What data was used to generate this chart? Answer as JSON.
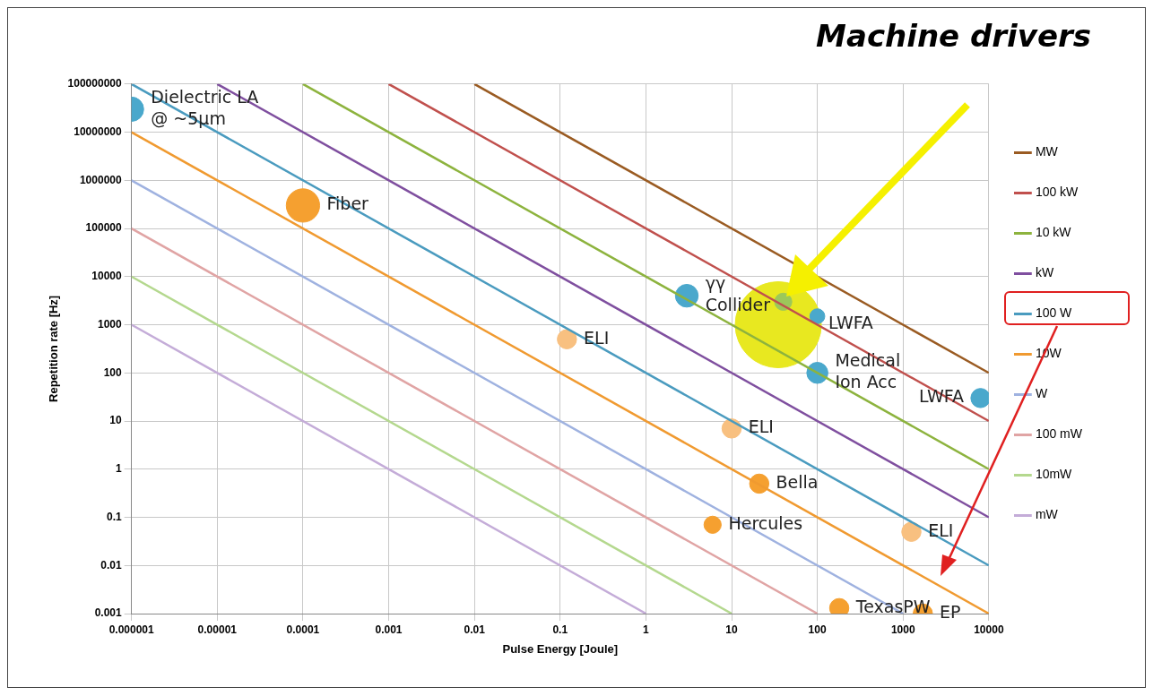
{
  "chart_data": {
    "type": "line",
    "title": "Machine drivers",
    "xlabel": "Pulse Energy [Joule]",
    "ylabel": "Repetition rate [Hz]",
    "log": "xy",
    "grid": true,
    "legend": "right",
    "xlim": [
      1e-06,
      10000
    ],
    "ylim": [
      0.001,
      100000000
    ],
    "xticks": [
      {
        "value": 1e-06,
        "label": "0.000001"
      },
      {
        "value": 1e-05,
        "label": "0.00001"
      },
      {
        "value": 0.0001,
        "label": "0.0001"
      },
      {
        "value": 0.001,
        "label": "0.001"
      },
      {
        "value": 0.01,
        "label": "0.01"
      },
      {
        "value": 0.1,
        "label": "0.1"
      },
      1,
      10,
      100,
      1000,
      10000
    ],
    "yticks": [
      {
        "value": 0.001,
        "label": "0.001"
      },
      {
        "value": 0.01,
        "label": "0.01"
      },
      {
        "value": 0.1,
        "label": "0.1"
      },
      1,
      10,
      100,
      1000,
      10000,
      100000,
      1000000,
      10000000,
      100000000
    ],
    "series": [
      {
        "name": "MW",
        "color": "#9a5b22",
        "x": [
          0.01,
          10000
        ],
        "values": [
          100000000,
          100
        ]
      },
      {
        "name": "100 kW",
        "color": "#c0504d",
        "x": [
          0.001,
          10000
        ],
        "values": [
          100000000,
          10
        ]
      },
      {
        "name": "10 kW",
        "color": "#8db33e",
        "x": [
          0.0001,
          10000
        ],
        "values": [
          100000000,
          1
        ]
      },
      {
        "name": "kW",
        "color": "#7f4f9f",
        "x": [
          1e-05,
          10000
        ],
        "values": [
          100000000,
          0.1
        ]
      },
      {
        "name": "100 W",
        "color": "#4a9bbf",
        "x": [
          1e-06,
          10000
        ],
        "values": [
          100000000,
          0.01
        ]
      },
      {
        "name": "10W",
        "color": "#f09a30",
        "x": [
          1e-06,
          10000
        ],
        "values": [
          10000000,
          0.001
        ]
      },
      {
        "name": "W",
        "color": "#9fb2e0",
        "x": [
          1e-06,
          1000
        ],
        "values": [
          1000000,
          0.001
        ]
      },
      {
        "name": "100 mW",
        "color": "#e0a4a4",
        "x": [
          1e-06,
          100
        ],
        "values": [
          100000,
          0.001
        ]
      },
      {
        "name": "10mW",
        "color": "#b4d88e",
        "x": [
          1e-06,
          10
        ],
        "values": [
          10000,
          0.001
        ]
      },
      {
        "name": "mW",
        "color": "#c4acd8",
        "x": [
          1e-06,
          1
        ],
        "values": [
          1000,
          0.001
        ]
      },
      {
        "type": "bubble",
        "x": [
          1e-06,
          0.0001,
          3,
          35,
          40,
          100,
          100,
          8000,
          0.12,
          10,
          1250,
          21,
          6,
          180,
          1700
        ],
        "values": [
          30000000,
          300000,
          4000,
          1000,
          3000,
          1500,
          100,
          30,
          500,
          7,
          0.05,
          0.5,
          0.07,
          0.0013,
          0.001
        ],
        "sizes": [
          0.08,
          0.15,
          0.07,
          1,
          0.04,
          0.03,
          0.06,
          0.05,
          0.05,
          0.05,
          0.05,
          0.05,
          0.04,
          0.05,
          0.05
        ],
        "colors": [
          "#4aa8cc",
          "#f5a030",
          "#4aa8cc",
          "#e8e820",
          "#9cc85a",
          "#4aa8cc",
          "#4aa8cc",
          "#4aa8cc",
          "#f8c080",
          "#f8c080",
          "#f8c080",
          "#f5a030",
          "#f5a030",
          "#f5a030",
          "#f5a030"
        ]
      }
    ],
    "annotations": [
      {
        "text": "Dielectric LA\n@ ~5μm",
        "x": 1e-06,
        "y": 30000000
      },
      {
        "text": "Fiber",
        "x": 0.0001,
        "y": 300000
      },
      {
        "text": "γγ\nCollider",
        "x": 3,
        "y": 4000
      },
      {
        "text": "LWFA",
        "x": 35,
        "y": 1000
      },
      {
        "text": "ELI",
        "x": 0.12,
        "y": 500
      },
      {
        "text": "ELI",
        "x": 10,
        "y": 7
      },
      {
        "text": "ELI",
        "x": 1250,
        "y": 0.05
      },
      {
        "text": "Medical\nIon Acc",
        "x": 100,
        "y": 100
      },
      {
        "text": "LWFA",
        "x": 8000,
        "y": 30
      },
      {
        "text": "Bella",
        "x": 21,
        "y": 0.5
      },
      {
        "text": "Hercules",
        "x": 6,
        "y": 0.07
      },
      {
        "text": "TexasPW",
        "x": 180,
        "y": 0.0013
      },
      {
        "text": "EP",
        "x": 1700,
        "y": 0.001
      }
    ]
  }
}
